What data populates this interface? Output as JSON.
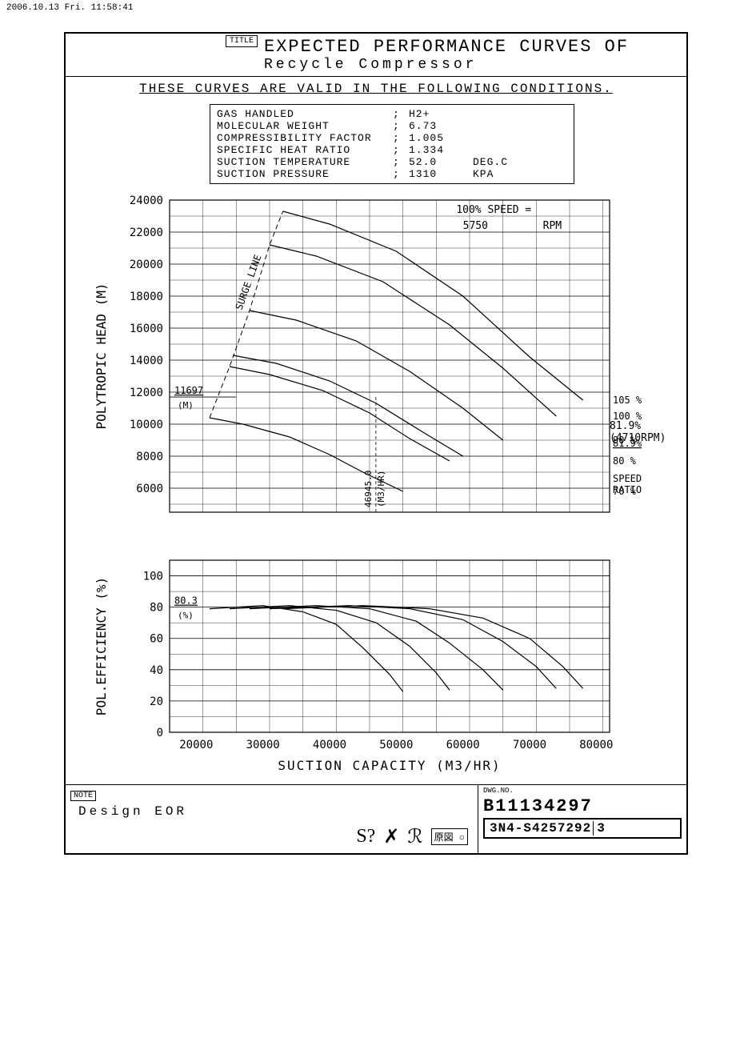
{
  "timestamp": "2006.10.13 Fri. 11:58:41",
  "title_label": "TITLE",
  "title_main": "EXPECTED PERFORMANCE CURVES OF",
  "subtitle": "Recycle Compressor",
  "validity": "THESE CURVES ARE VALID IN THE FOLLOWING CONDITIONS.",
  "conditions": [
    {
      "label": "GAS HANDLED",
      "value": "H2+",
      "unit": ""
    },
    {
      "label": "MOLECULAR WEIGHT",
      "value": "6.73",
      "unit": ""
    },
    {
      "label": "COMPRESSIBILITY FACTOR",
      "value": "1.005",
      "unit": ""
    },
    {
      "label": "SPECIFIC HEAT RATIO",
      "value": "1.334",
      "unit": ""
    },
    {
      "label": "SUCTION TEMPERATURE",
      "value": "52.0",
      "unit": "DEG.C"
    },
    {
      "label": "SUCTION PRESSURE",
      "value": "1310",
      "unit": "KPA"
    }
  ],
  "head_chart": {
    "type": "line",
    "ylabel": "POLYTROPIC HEAD (M)",
    "ylim": [
      4500,
      24000
    ],
    "yticks": [
      6000,
      8000,
      10000,
      12000,
      14000,
      16000,
      18000,
      20000,
      22000,
      24000
    ],
    "ytick_minor_step": 1000,
    "xlim": [
      16000,
      82000
    ],
    "xticks": [
      20000,
      30000,
      40000,
      50000,
      60000,
      70000,
      80000
    ],
    "xtick_minor_step": 5000,
    "mark_value": "11697",
    "mark_unit": "(M)",
    "design_x": 46945.0,
    "design_x_label": "46945.0",
    "design_x_unit": "(M3/HR)",
    "speed_100_label": "100% SPEED =",
    "speed_100_value": "5750",
    "speed_100_unit": "RPM",
    "speed_ratio_label": "SPEED\nRATIO",
    "surge_label": "SURGE LINE",
    "annotation_819": "81.9%(4710RPM)",
    "curves": {
      "105": {
        "label": "105 %",
        "pts": [
          [
            33000,
            23300
          ],
          [
            40000,
            22500
          ],
          [
            50000,
            20800
          ],
          [
            60000,
            18000
          ],
          [
            70000,
            14200
          ],
          [
            78000,
            11500
          ]
        ]
      },
      "100": {
        "label": "100 %",
        "pts": [
          [
            31000,
            21200
          ],
          [
            38000,
            20500
          ],
          [
            48000,
            18900
          ],
          [
            58000,
            16200
          ],
          [
            66000,
            13500
          ],
          [
            74000,
            10500
          ]
        ]
      },
      "90": {
        "label": "90 %",
        "pts": [
          [
            28000,
            17100
          ],
          [
            35000,
            16500
          ],
          [
            44000,
            15200
          ],
          [
            52000,
            13300
          ],
          [
            60000,
            11000
          ],
          [
            66000,
            9000
          ]
        ]
      },
      "819": {
        "label": "81.9%",
        "pts": [
          [
            25500,
            14300
          ],
          [
            32000,
            13800
          ],
          [
            40000,
            12700
          ],
          [
            47000,
            11300
          ],
          [
            54000,
            9500
          ],
          [
            60000,
            8000
          ]
        ]
      },
      "80": {
        "label": "80 %",
        "pts": [
          [
            25000,
            13600
          ],
          [
            31000,
            13100
          ],
          [
            39000,
            12100
          ],
          [
            46000,
            10700
          ],
          [
            52000,
            9100
          ],
          [
            58000,
            7700
          ]
        ]
      },
      "70": {
        "label": "70 %",
        "pts": [
          [
            22000,
            10400
          ],
          [
            27000,
            10000
          ],
          [
            34000,
            9200
          ],
          [
            40000,
            8100
          ],
          [
            45000,
            7000
          ],
          [
            51000,
            5800
          ]
        ]
      }
    },
    "surge_line": [
      [
        22000,
        10400
      ],
      [
        25000,
        13600
      ],
      [
        28000,
        17100
      ],
      [
        31000,
        21200
      ],
      [
        33000,
        23300
      ]
    ],
    "line_color": "#000000",
    "grid_color": "#000000",
    "font_size_axis": 14,
    "font_size_label": 16
  },
  "eff_chart": {
    "type": "line",
    "ylabel": "POL.EFFICIENCY (%)",
    "xlabel": "SUCTION CAPACITY (M3/HR)",
    "ylim": [
      0,
      110
    ],
    "yticks": [
      0,
      20,
      40,
      60,
      80,
      100
    ],
    "ytick_minor_step": 10,
    "xlim": [
      16000,
      82000
    ],
    "xticks": [
      20000,
      30000,
      40000,
      50000,
      60000,
      70000,
      80000
    ],
    "mark_value": "80.3",
    "mark_unit": "(%)",
    "curves": {
      "105": [
        [
          33000,
          79
        ],
        [
          45000,
          81
        ],
        [
          55000,
          79
        ],
        [
          63000,
          73
        ],
        [
          70000,
          60
        ],
        [
          75000,
          42
        ],
        [
          78000,
          28
        ]
      ],
      "100": [
        [
          31000,
          79
        ],
        [
          43000,
          81
        ],
        [
          52000,
          79
        ],
        [
          60000,
          72
        ],
        [
          66000,
          58
        ],
        [
          71000,
          42
        ],
        [
          74000,
          28
        ]
      ],
      "90": [
        [
          28000,
          79
        ],
        [
          38000,
          81
        ],
        [
          46000,
          79
        ],
        [
          53000,
          71
        ],
        [
          58000,
          57
        ],
        [
          63000,
          40
        ],
        [
          66000,
          27
        ]
      ],
      "80": [
        [
          25000,
          79
        ],
        [
          34000,
          81
        ],
        [
          41000,
          78
        ],
        [
          47000,
          70
        ],
        [
          52000,
          55
        ],
        [
          56000,
          38
        ],
        [
          58000,
          27
        ]
      ],
      "70": [
        [
          22000,
          79
        ],
        [
          30000,
          81
        ],
        [
          36000,
          77
        ],
        [
          41000,
          69
        ],
        [
          45000,
          54
        ],
        [
          49000,
          37
        ],
        [
          51000,
          26
        ]
      ]
    },
    "line_color": "#000000"
  },
  "note_label": "NOTE",
  "note_content": "Design   EOR",
  "dwg_label": "DWG.NO.",
  "dwg_no": "B11134297",
  "stamp": "3N4-S4257292",
  "stamp_rev": "3",
  "genzn": "原図",
  "scribbles": [
    "S?",
    "✗",
    "ℛ"
  ]
}
